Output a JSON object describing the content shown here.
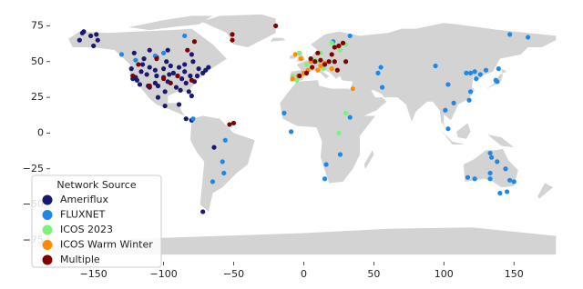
{
  "chart_data": {
    "type": "scatter",
    "legend_title": "Network Source",
    "legend_loc": "lower left",
    "xlim": [
      -181,
      183
    ],
    "ylim": [
      -90,
      88
    ],
    "xticks": [
      {
        "value": -150,
        "label": "−150"
      },
      {
        "value": -100,
        "label": "−100"
      },
      {
        "value": -50,
        "label": "−50"
      },
      0,
      50,
      100,
      150
    ],
    "yticks": [
      {
        "value": -75,
        "label": "−75"
      },
      {
        "value": -50,
        "label": "−50"
      },
      {
        "value": -25,
        "label": "−25"
      },
      0,
      25,
      50,
      75
    ],
    "series": [
      {
        "name": "Ameriflux",
        "color": "#191970",
        "x": [
          -123,
          -122,
          -120,
          -119,
          -117,
          -116,
          -112,
          -111,
          -110,
          -106,
          -105,
          -104,
          -100,
          -97,
          -96,
          -93,
          -90,
          -89,
          -85,
          -84,
          -82,
          -80,
          -78,
          -76,
          -72,
          -70,
          -68,
          -88,
          -91,
          -99,
          -100,
          -95,
          -106,
          -115,
          -110,
          -87,
          -81,
          -75,
          -79,
          -85,
          -98,
          -105,
          -114,
          -121,
          -160,
          -157,
          -147,
          -150,
          -158,
          -152,
          -148,
          -110,
          -97,
          -80,
          -104,
          -99,
          -89,
          -84,
          -80,
          -64,
          -72
        ],
        "y": [
          45,
          38,
          39,
          37,
          34,
          43,
          41,
          33,
          32,
          35,
          40,
          33,
          39,
          36,
          41,
          42,
          40,
          46,
          43,
          35,
          29,
          26,
          36,
          40,
          42,
          44,
          46,
          30,
          32,
          29,
          45,
          47,
          44,
          48,
          46,
          38,
          40,
          45,
          50,
          48,
          50,
          53,
          52,
          56,
          65,
          71,
          65,
          61,
          70,
          68,
          69,
          58,
          58,
          55,
          25,
          19,
          20,
          10,
          9,
          -10,
          -55
        ]
      },
      {
        "name": "FLUXNET",
        "color": "#1f88e5",
        "x": [
          94,
          103,
          116,
          119,
          122,
          130,
          138,
          139,
          147,
          160,
          107,
          103,
          101,
          119,
          118,
          126,
          123,
          137,
          133,
          134,
          138,
          133,
          144,
          147,
          150,
          145,
          117,
          122,
          133,
          140,
          33,
          26,
          15,
          16,
          -14,
          -9,
          -56,
          -58,
          -57,
          -65,
          -79,
          -106,
          -100,
          -120,
          21,
          33,
          55,
          53,
          56,
          -85,
          -130
        ],
        "y": [
          47,
          34,
          42,
          42,
          43,
          44,
          36,
          45,
          69,
          67,
          21,
          3,
          16,
          29,
          23,
          41,
          38,
          37,
          -14,
          -17,
          -20,
          -28,
          -25,
          -33,
          -34,
          -41,
          -31,
          -32,
          -32,
          -42,
          11,
          -15,
          -32,
          -22,
          14,
          1,
          -5,
          -20,
          -28,
          -34,
          10,
          54,
          56,
          51,
          64,
          68,
          46,
          42,
          32,
          68,
          55
        ]
      },
      {
        "name": "ICOS 2023",
        "color": "#7ef07e",
        "x": [
          -3,
          5,
          8,
          10,
          2,
          12,
          14,
          24,
          26,
          20,
          30,
          -8,
          -5,
          25,
          30
        ],
        "y": [
          56,
          52,
          51,
          50,
          48,
          56,
          45,
          60,
          58,
          63,
          62,
          40,
          37,
          0,
          14
        ]
      },
      {
        "name": "ICOS Warm Winter",
        "color": "#ff8c00",
        "x": [
          -8,
          -4,
          0,
          3,
          10,
          12,
          15,
          5,
          -2,
          20,
          35,
          -6
        ],
        "y": [
          38,
          40,
          42,
          44,
          44,
          47,
          49,
          50,
          52,
          45,
          31,
          55
        ]
      },
      {
        "name": "Multiple",
        "color": "#800000",
        "x": [
          -110,
          -90,
          -80,
          -122,
          -95,
          -118,
          -53,
          -50,
          -51,
          -51,
          -20,
          -78,
          -83,
          5,
          8,
          12,
          15,
          6,
          20,
          25,
          28,
          10,
          22,
          -3,
          2,
          18,
          24,
          30,
          22,
          -105,
          -100
        ],
        "y": [
          33,
          40,
          37,
          40,
          35,
          48,
          6,
          7,
          69,
          65,
          75,
          64,
          58,
          52,
          50,
          51,
          48,
          46,
          55,
          61,
          63,
          56,
          50,
          40,
          42,
          50,
          44,
          50,
          60,
          52,
          38
        ]
      }
    ]
  }
}
